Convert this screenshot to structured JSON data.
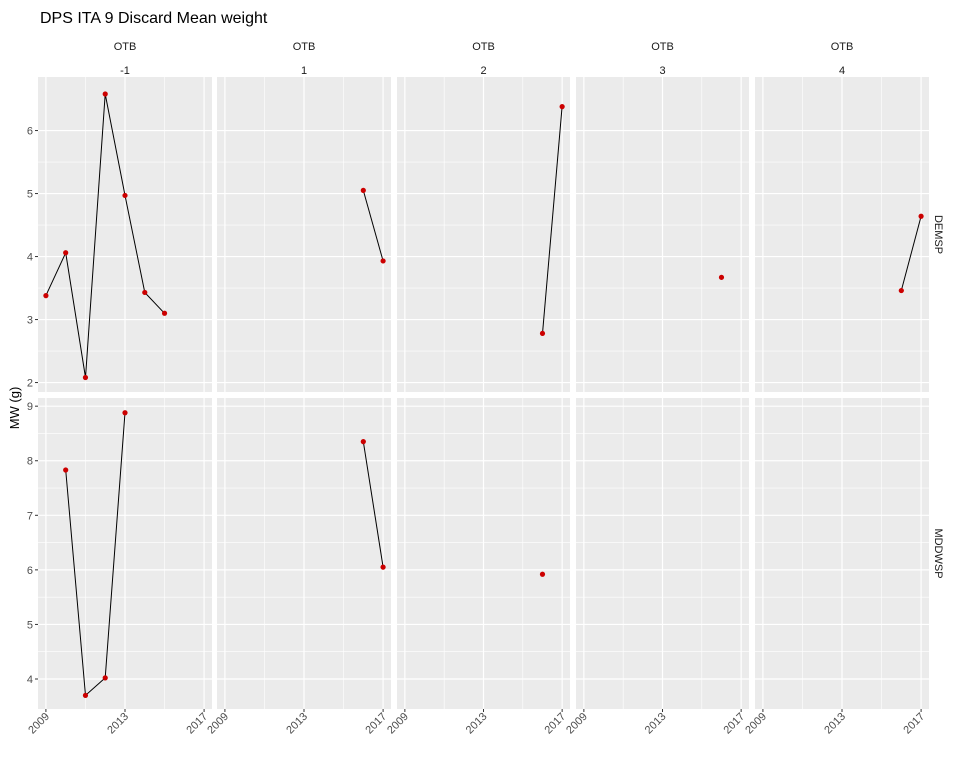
{
  "chart_data": {
    "type": "line",
    "title": "DPS ITA 9 Discard Mean weight",
    "ylabel": "MW (g)",
    "xlabel": "",
    "columns": [
      {
        "line1": "OTB",
        "line2": "-1"
      },
      {
        "line1": "OTB",
        "line2": "1"
      },
      {
        "line1": "OTB",
        "line2": "2"
      },
      {
        "line1": "OTB",
        "line2": "3"
      },
      {
        "line1": "OTB",
        "line2": "4"
      }
    ],
    "rows": [
      {
        "label": "DEMSP",
        "ylim": [
          1.85,
          6.85
        ],
        "yticks": [
          2,
          3,
          4,
          5,
          6
        ]
      },
      {
        "label": "MDDWSP",
        "ylim": [
          3.45,
          9.15
        ],
        "yticks": [
          4,
          5,
          6,
          7,
          8,
          9
        ]
      }
    ],
    "xlim": [
      2008.6,
      2017.4
    ],
    "xticks": [
      2009,
      2013,
      2017
    ],
    "point_color": "#cc0000",
    "line_color": "#000000",
    "panels": [
      {
        "row": 0,
        "col": 0,
        "x": [
          2009,
          2010,
          2011,
          2012,
          2013,
          2014,
          2015
        ],
        "y": [
          3.38,
          4.06,
          2.08,
          6.58,
          4.97,
          3.43,
          3.1
        ]
      },
      {
        "row": 0,
        "col": 1,
        "x": [
          2016,
          2017
        ],
        "y": [
          5.05,
          3.93
        ]
      },
      {
        "row": 0,
        "col": 2,
        "x": [
          2016,
          2017
        ],
        "y": [
          2.78,
          6.38
        ]
      },
      {
        "row": 0,
        "col": 3,
        "x": [
          2016
        ],
        "y": [
          3.67
        ]
      },
      {
        "row": 0,
        "col": 4,
        "x": [
          2016,
          2017
        ],
        "y": [
          3.46,
          4.64
        ]
      },
      {
        "row": 1,
        "col": 0,
        "x": [
          2010,
          2011,
          2012,
          2013
        ],
        "y": [
          7.83,
          3.7,
          4.02,
          8.88
        ]
      },
      {
        "row": 1,
        "col": 1,
        "x": [
          2016,
          2017
        ],
        "y": [
          8.35,
          6.05
        ]
      },
      {
        "row": 1,
        "col": 2,
        "x": [
          2016
        ],
        "y": [
          5.92
        ]
      },
      {
        "row": 1,
        "col": 3,
        "x": [],
        "y": []
      },
      {
        "row": 1,
        "col": 4,
        "x": [],
        "y": []
      }
    ]
  }
}
